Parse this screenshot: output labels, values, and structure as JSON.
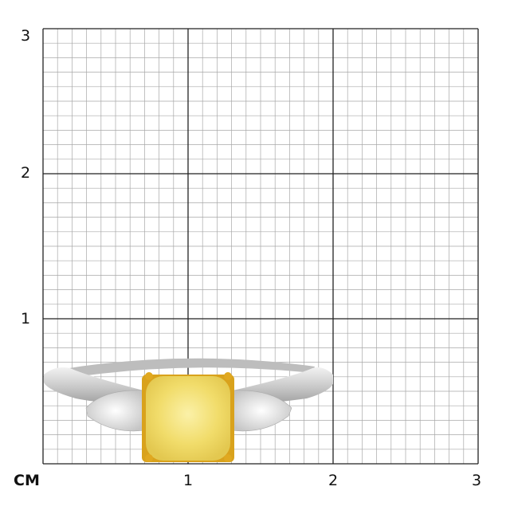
{
  "scale": {
    "unit_label": "CM",
    "x_labels": [
      "1",
      "2",
      "3"
    ],
    "y_labels": [
      "3",
      "2",
      "1"
    ],
    "range_cm": [
      0,
      3
    ],
    "minor_divisions_per_cm": 10
  },
  "colors": {
    "grid_minor": "#a8a8a8",
    "grid_major": "#222222",
    "metal": "#d8d8d8",
    "stone_yellow": "#f3e27a",
    "prongs_gold": "#e0a820"
  }
}
